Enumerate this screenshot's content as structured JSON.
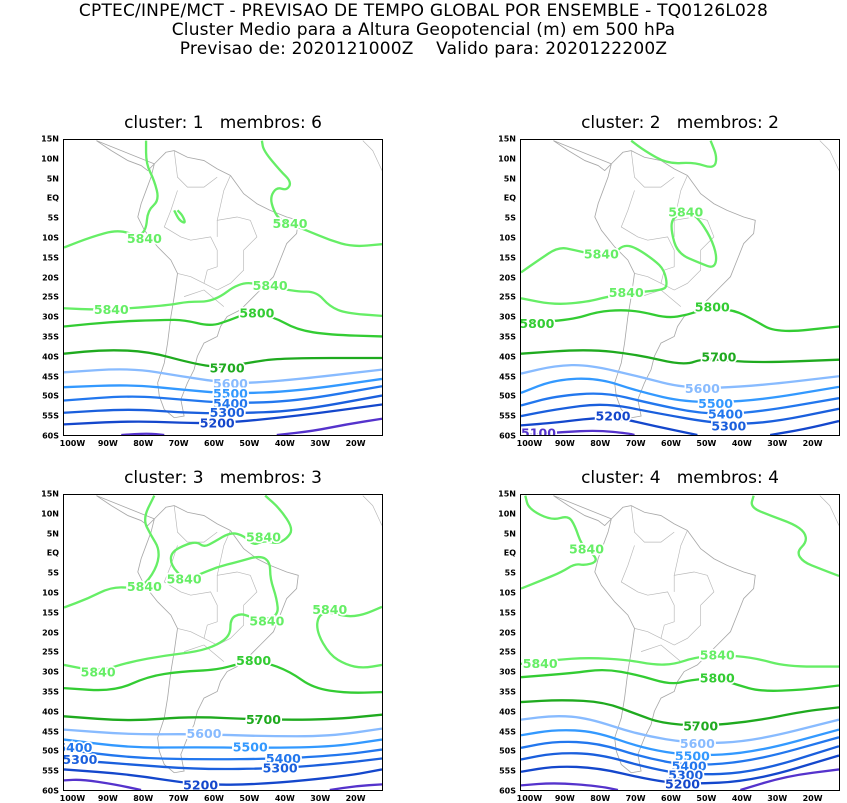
{
  "header": {
    "line1": "CPTEC/INPE/MCT - PREVISAO DE TEMPO GLOBAL POR ENSEMBLE - TQ0126L028",
    "line2": "Cluster Medio para a Altura Geopotencial (m) em 500 hPa",
    "line3": "Previsao de: 2020121000Z    Valido para: 2020122200Z"
  },
  "lat_ticks": [
    "15N",
    "10N",
    "5N",
    "EQ",
    "5S",
    "10S",
    "15S",
    "20S",
    "25S",
    "30S",
    "35S",
    "40S",
    "45S",
    "50S",
    "55S",
    "60S"
  ],
  "lon_ticks": [
    "100W",
    "90W",
    "80W",
    "70W",
    "60W",
    "50W",
    "40W",
    "30W",
    "20W"
  ],
  "contour_colors": {
    "5840": "#66ee66",
    "5800": "#33cc33",
    "5700": "#1faa1f",
    "5600": "#88bbff",
    "5500": "#3399ff",
    "5400": "#2277ee",
    "5300": "#1a5fdd",
    "5200": "#1447cc",
    "5100": "#5533cc"
  },
  "panels": [
    {
      "title": "cluster: 1   membros: 6",
      "contour_labels": [
        "5840",
        "5840",
        "5840",
        "5840",
        "5800",
        "5700",
        "5600",
        "5500",
        "5400",
        "5300",
        "5200"
      ]
    },
    {
      "title": "cluster: 2   membros: 2",
      "contour_labels": [
        "5840",
        "5840",
        "5840",
        "5800",
        "5800",
        "5700",
        "5600",
        "5500",
        "5400",
        "5300",
        "5200",
        "5100"
      ]
    },
    {
      "title": "cluster: 3   membros: 3",
      "contour_labels": [
        "5840",
        "5840",
        "5840",
        "5840",
        "5840",
        "5840",
        "5800",
        "5700",
        "5600",
        "5500",
        "5400",
        "5400",
        "5300",
        "5300",
        "5200"
      ]
    },
    {
      "title": "cluster: 4   membros: 4",
      "contour_labels": [
        "5840",
        "5840",
        "5840",
        "5800",
        "5700",
        "5600",
        "5500",
        "5400",
        "5300",
        "5200"
      ]
    }
  ]
}
